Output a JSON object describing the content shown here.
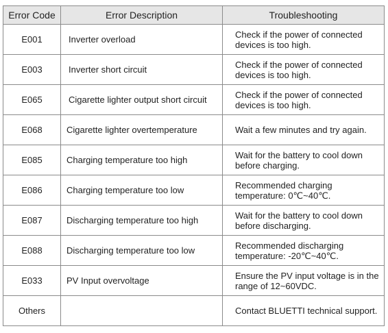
{
  "table": {
    "headers": {
      "code": "Error Code",
      "description": "Error Description",
      "troubleshooting": "Troubleshooting"
    },
    "rows": [
      {
        "code": "E001",
        "description": "Inverter overload",
        "troubleshooting": "Check if the power of connected devices is too high."
      },
      {
        "code": "E003",
        "description": "Inverter short circuit",
        "troubleshooting": "Check if the power of connected devices is too high."
      },
      {
        "code": "E065",
        "description": "Cigarette lighter output short circuit",
        "troubleshooting": "Check if the power of connected devices is too high."
      },
      {
        "code": "E068",
        "description": "Cigarette lighter overtemperature",
        "troubleshooting": "Wait a few minutes and try again."
      },
      {
        "code": "E085",
        "description": "Charging temperature too high",
        "troubleshooting": "Wait for the battery to cool down before charging."
      },
      {
        "code": "E086",
        "description": "Charging temperature too low",
        "troubleshooting": "Recommended charging temperature: 0℃~40℃."
      },
      {
        "code": "E087",
        "description": "Discharging temperature too high",
        "troubleshooting": "Wait for the battery to cool down before discharging."
      },
      {
        "code": "E088",
        "description": "Discharging temperature too low",
        "troubleshooting": "Recommended discharging temperature: -20℃~40℃."
      },
      {
        "code": "E033",
        "description": "PV Input overvoltage",
        "troubleshooting": "Ensure the PV input voltage is in the range of 12~60VDC."
      },
      {
        "code": "Others",
        "description": "",
        "troubleshooting": "Contact BLUETTI technical support."
      }
    ]
  }
}
